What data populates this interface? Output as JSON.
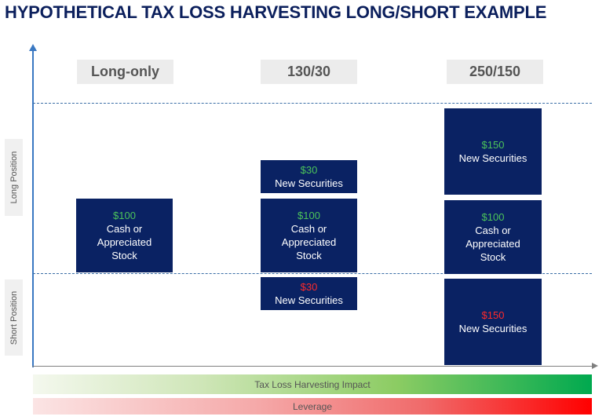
{
  "title": "HYPOTHETICAL TAX LOSS HARVESTING LONG/SHORT EXAMPLE",
  "axis_labels": {
    "long": "Long Position",
    "short": "Short Position"
  },
  "columns": [
    {
      "header": "Long-only",
      "boxes": [
        {
          "amount": "$100",
          "line1": "Cash or",
          "line2": "Appreciated",
          "line3": "Stock"
        }
      ]
    },
    {
      "header": "130/30",
      "boxes": [
        {
          "amount": "$30",
          "line1": "New Securities"
        },
        {
          "amount": "$100",
          "line1": "Cash or",
          "line2": "Appreciated",
          "line3": "Stock"
        },
        {
          "amount": "$30",
          "line1": "New Securities"
        }
      ]
    },
    {
      "header": "250/150",
      "boxes": [
        {
          "amount": "$150",
          "line1": "New Securities"
        },
        {
          "amount": "$100",
          "line1": "Cash or",
          "line2": "Appreciated",
          "line3": "Stock"
        },
        {
          "amount": "$150",
          "line1": "New Securities"
        }
      ]
    }
  ],
  "bars": {
    "tax": "Tax Loss Harvesting Impact",
    "leverage": "Leverage"
  },
  "colors": {
    "title": "#0b1f5c",
    "box": "#0a2263",
    "positive": "#4cc45a",
    "negative": "#ff2a2a",
    "axis": "#3a78c2"
  }
}
